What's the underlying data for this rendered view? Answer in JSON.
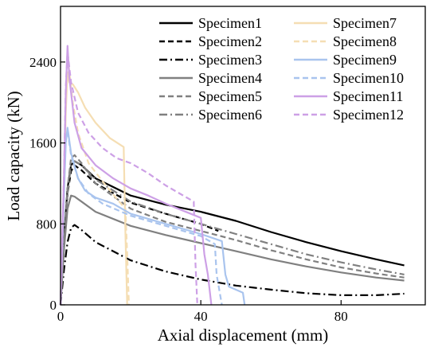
{
  "chart_data": {
    "type": "line",
    "xlabel": "Axial displacement (mm)",
    "ylabel": "Load capacity (kN)",
    "xlim": [
      0,
      104
    ],
    "ylim": [
      0,
      2950
    ],
    "x_ticks": [
      0,
      40,
      80
    ],
    "y_ticks": [
      0,
      800,
      1600,
      2400
    ],
    "x_tick_labels": [
      "0",
      "40",
      "80"
    ],
    "y_tick_labels": [
      "0",
      "800",
      "1600",
      "2400"
    ],
    "grid": false,
    "legend_position": "top-right",
    "series": [
      {
        "name": "Specimen1",
        "color": "#000000",
        "style": "solid",
        "points": [
          [
            0,
            0
          ],
          [
            1,
            650
          ],
          [
            2,
            1150
          ],
          [
            3,
            1380
          ],
          [
            4,
            1420
          ],
          [
            6,
            1380
          ],
          [
            10,
            1250
          ],
          [
            20,
            1080
          ],
          [
            30,
            990
          ],
          [
            40,
            920
          ],
          [
            50,
            830
          ],
          [
            60,
            720
          ],
          [
            70,
            620
          ],
          [
            80,
            530
          ],
          [
            90,
            450
          ],
          [
            98,
            390
          ]
        ]
      },
      {
        "name": "Specimen2",
        "color": "#000000",
        "style": "dash",
        "points": [
          [
            0,
            0
          ],
          [
            1,
            650
          ],
          [
            2,
            1100
          ],
          [
            3,
            1320
          ],
          [
            4,
            1380
          ],
          [
            6,
            1330
          ],
          [
            10,
            1200
          ],
          [
            20,
            1010
          ],
          [
            30,
            900
          ],
          [
            40,
            800
          ],
          [
            45,
            730
          ]
        ]
      },
      {
        "name": "Specimen3",
        "color": "#000000",
        "style": "dashdot",
        "points": [
          [
            0,
            0
          ],
          [
            1,
            350
          ],
          [
            2,
            620
          ],
          [
            3,
            760
          ],
          [
            4,
            790
          ],
          [
            6,
            740
          ],
          [
            10,
            620
          ],
          [
            20,
            440
          ],
          [
            30,
            330
          ],
          [
            40,
            250
          ],
          [
            50,
            190
          ],
          [
            60,
            150
          ],
          [
            70,
            115
          ],
          [
            80,
            95
          ],
          [
            90,
            95
          ],
          [
            98,
            110
          ]
        ]
      },
      {
        "name": "Specimen4",
        "color": "#808080",
        "style": "solid",
        "points": [
          [
            0,
            0
          ],
          [
            1,
            550
          ],
          [
            2,
            950
          ],
          [
            3,
            1080
          ],
          [
            4,
            1070
          ],
          [
            6,
            1020
          ],
          [
            10,
            920
          ],
          [
            20,
            780
          ],
          [
            30,
            690
          ],
          [
            40,
            610
          ],
          [
            50,
            530
          ],
          [
            60,
            450
          ],
          [
            70,
            380
          ],
          [
            80,
            320
          ],
          [
            90,
            270
          ],
          [
            98,
            240
          ]
        ]
      },
      {
        "name": "Specimen5",
        "color": "#808080",
        "style": "dash",
        "points": [
          [
            0,
            0
          ],
          [
            1,
            600
          ],
          [
            2,
            1150
          ],
          [
            3,
            1450
          ],
          [
            4,
            1480
          ],
          [
            6,
            1400
          ],
          [
            10,
            1200
          ],
          [
            20,
            950
          ],
          [
            30,
            820
          ],
          [
            40,
            730
          ],
          [
            50,
            640
          ],
          [
            60,
            540
          ],
          [
            70,
            450
          ],
          [
            80,
            370
          ],
          [
            90,
            310
          ],
          [
            98,
            270
          ]
        ]
      },
      {
        "name": "Specimen6",
        "color": "#808080",
        "style": "dashdot",
        "points": [
          [
            0,
            0
          ],
          [
            1,
            600
          ],
          [
            2,
            1100
          ],
          [
            3,
            1380
          ],
          [
            4,
            1420
          ],
          [
            6,
            1380
          ],
          [
            10,
            1240
          ],
          [
            20,
            1020
          ],
          [
            30,
            900
          ],
          [
            40,
            800
          ],
          [
            50,
            700
          ],
          [
            60,
            600
          ],
          [
            70,
            500
          ],
          [
            80,
            420
          ],
          [
            90,
            350
          ],
          [
            98,
            300
          ]
        ]
      },
      {
        "name": "Specimen7",
        "color": "#f5deb3",
        "style": "solid",
        "points": [
          [
            0,
            0
          ],
          [
            1,
            1200
          ],
          [
            1.5,
            1900
          ],
          [
            2,
            2300
          ],
          [
            2.5,
            2200
          ],
          [
            3.5,
            2180
          ],
          [
            5,
            2100
          ],
          [
            7,
            1950
          ],
          [
            10,
            1800
          ],
          [
            14,
            1650
          ],
          [
            18,
            1560
          ],
          [
            18.5,
            700
          ],
          [
            19,
            0
          ]
        ]
      },
      {
        "name": "Specimen8",
        "color": "#f5deb3",
        "style": "dash",
        "points": [
          [
            0,
            0
          ],
          [
            1,
            1300
          ],
          [
            1.5,
            2050
          ],
          [
            2,
            2480
          ],
          [
            2.5,
            2300
          ],
          [
            3.5,
            2000
          ],
          [
            5,
            1700
          ],
          [
            8,
            1400
          ],
          [
            12,
            1220
          ],
          [
            16,
            1050
          ],
          [
            18.5,
            950
          ],
          [
            19,
            500
          ],
          [
            19.5,
            0
          ]
        ]
      },
      {
        "name": "Specimen9",
        "color": "#a9c4ee",
        "style": "solid",
        "points": [
          [
            0,
            0
          ],
          [
            1,
            1100
          ],
          [
            1.5,
            1600
          ],
          [
            2,
            1750
          ],
          [
            3,
            1500
          ],
          [
            5,
            1250
          ],
          [
            7,
            1130
          ],
          [
            10,
            1060
          ],
          [
            15,
            1000
          ],
          [
            20,
            900
          ],
          [
            30,
            800
          ],
          [
            40,
            700
          ],
          [
            46,
            630
          ],
          [
            47,
            300
          ],
          [
            48,
            180
          ],
          [
            52,
            120
          ],
          [
            52.5,
            0
          ]
        ]
      },
      {
        "name": "Specimen10",
        "color": "#a9c4ee",
        "style": "dash",
        "points": [
          [
            0,
            0
          ],
          [
            1,
            1150
          ],
          [
            1.5,
            1650
          ],
          [
            2,
            1720
          ],
          [
            3,
            1480
          ],
          [
            5,
            1250
          ],
          [
            8,
            1100
          ],
          [
            12,
            1000
          ],
          [
            20,
            880
          ],
          [
            30,
            780
          ],
          [
            40,
            680
          ],
          [
            44,
            600
          ],
          [
            44.5,
            300
          ],
          [
            45,
            200
          ],
          [
            46,
            0
          ]
        ]
      },
      {
        "name": "Specimen11",
        "color": "#cda0e6",
        "style": "solid",
        "points": [
          [
            0,
            0
          ],
          [
            1,
            1300
          ],
          [
            1.5,
            2100
          ],
          [
            2,
            2560
          ],
          [
            2.5,
            2250
          ],
          [
            4,
            1800
          ],
          [
            6,
            1550
          ],
          [
            10,
            1380
          ],
          [
            15,
            1250
          ],
          [
            20,
            1150
          ],
          [
            25,
            1080
          ],
          [
            30,
            1000
          ],
          [
            35,
            930
          ],
          [
            40,
            860
          ],
          [
            41,
            500
          ],
          [
            42,
            300
          ],
          [
            43,
            0
          ]
        ]
      },
      {
        "name": "Specimen12",
        "color": "#cda0e6",
        "style": "dash",
        "points": [
          [
            0,
            0
          ],
          [
            1,
            1300
          ],
          [
            1.5,
            2150
          ],
          [
            2,
            2500
          ],
          [
            3,
            2200
          ],
          [
            5,
            1900
          ],
          [
            8,
            1700
          ],
          [
            12,
            1550
          ],
          [
            16,
            1450
          ],
          [
            20,
            1400
          ],
          [
            25,
            1300
          ],
          [
            30,
            1180
          ],
          [
            35,
            1080
          ],
          [
            38,
            1020
          ],
          [
            38.5,
            400
          ],
          [
            39,
            0
          ]
        ]
      }
    ]
  }
}
